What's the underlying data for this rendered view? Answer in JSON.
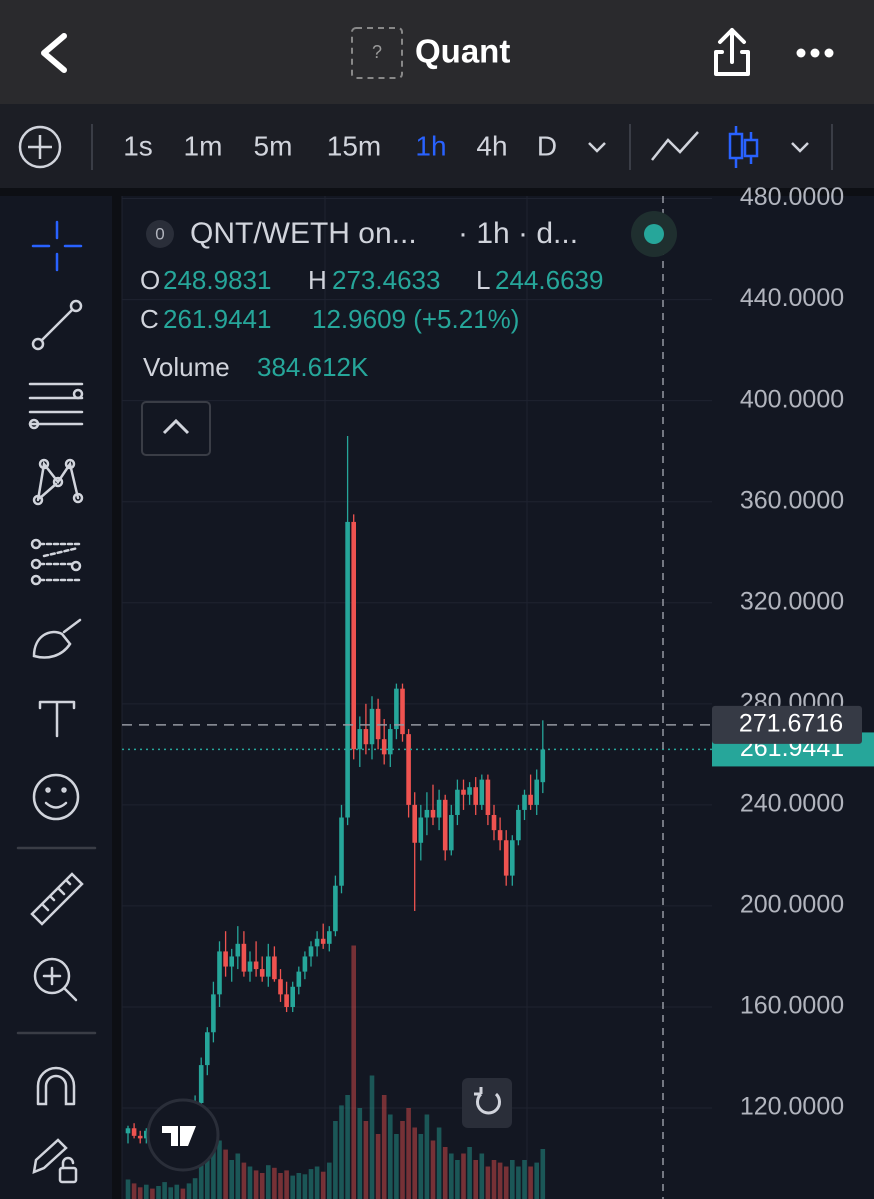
{
  "header": {
    "title": "Quant",
    "icon_label": "?"
  },
  "toolbar": {
    "intervals": [
      "1s",
      "1m",
      "5m",
      "15m",
      "1h",
      "4h",
      "D"
    ],
    "active_interval": "1h"
  },
  "chart_data": {
    "type": "candlestick",
    "legend_badge": "0",
    "symbol": "QNT/WETH on...",
    "interval": "· 1h · d...",
    "legend": {
      "open_label": "O",
      "open": "248.9831",
      "high_label": "H",
      "high": "273.4633",
      "low_label": "L",
      "low": "244.6639",
      "close_label": "C",
      "close": "261.9441",
      "change": "12.9609 (+5.21%)",
      "volume_label": "Volume",
      "volume": "384.612K"
    },
    "up_color": "#26a69a",
    "down_color": "#ef5350",
    "ylim": [
      84,
      481
    ],
    "yticks": [
      {
        "value": 120,
        "label": "120.0000"
      },
      {
        "value": 160,
        "label": "160.0000"
      },
      {
        "value": 200,
        "label": "200.0000"
      },
      {
        "value": 240,
        "label": "240.0000"
      },
      {
        "value": 280,
        "label": "280.0000"
      },
      {
        "value": 320,
        "label": "320.0000"
      },
      {
        "value": 360,
        "label": "360.0000"
      },
      {
        "value": 400,
        "label": "400.0000"
      },
      {
        "value": 440,
        "label": "440.0000"
      },
      {
        "value": 480,
        "label": "480.0000"
      }
    ],
    "crosshair_price": 271.6716,
    "last_price": 261.9441,
    "ohlc": [
      [
        110,
        113,
        106,
        112
      ],
      [
        112,
        114,
        108,
        109
      ],
      [
        109,
        111,
        106,
        108
      ],
      [
        108,
        112,
        106,
        111
      ],
      [
        111,
        113,
        107,
        108
      ],
      [
        108,
        112,
        105,
        110
      ],
      [
        110,
        114,
        108,
        112
      ],
      [
        112,
        116,
        109,
        114
      ],
      [
        114,
        118,
        111,
        116
      ],
      [
        116,
        119,
        112,
        113
      ],
      [
        113,
        120,
        110,
        118
      ],
      [
        118,
        125,
        115,
        122
      ],
      [
        122,
        140,
        120,
        137
      ],
      [
        137,
        152,
        133,
        150
      ],
      [
        150,
        170,
        146,
        165
      ],
      [
        165,
        186,
        160,
        182
      ],
      [
        182,
        190,
        172,
        176
      ],
      [
        176,
        183,
        170,
        180
      ],
      [
        180,
        192,
        175,
        185
      ],
      [
        185,
        190,
        172,
        174
      ],
      [
        174,
        182,
        170,
        178
      ],
      [
        178,
        186,
        172,
        175
      ],
      [
        175,
        180,
        170,
        172
      ],
      [
        172,
        185,
        168,
        180
      ],
      [
        180,
        184,
        170,
        171
      ],
      [
        171,
        175,
        162,
        165
      ],
      [
        165,
        170,
        158,
        160
      ],
      [
        160,
        170,
        158,
        168
      ],
      [
        168,
        176,
        165,
        174
      ],
      [
        174,
        182,
        171,
        180
      ],
      [
        180,
        186,
        176,
        184
      ],
      [
        184,
        190,
        180,
        187
      ],
      [
        187,
        193,
        183,
        185
      ],
      [
        185,
        192,
        182,
        190
      ],
      [
        190,
        212,
        188,
        208
      ],
      [
        208,
        240,
        205,
        235
      ],
      [
        235,
        386,
        232,
        352
      ],
      [
        352,
        355,
        258,
        262
      ],
      [
        262,
        275,
        255,
        270
      ],
      [
        270,
        280,
        260,
        264
      ],
      [
        264,
        283,
        258,
        278
      ],
      [
        278,
        282,
        262,
        266
      ],
      [
        266,
        274,
        256,
        260
      ],
      [
        260,
        272,
        255,
        270
      ],
      [
        270,
        288,
        266,
        286
      ],
      [
        286,
        288,
        265,
        268
      ],
      [
        268,
        270,
        235,
        240
      ],
      [
        240,
        245,
        198,
        225
      ],
      [
        225,
        240,
        218,
        235
      ],
      [
        235,
        245,
        228,
        238
      ],
      [
        238,
        248,
        232,
        235
      ],
      [
        235,
        246,
        230,
        242
      ],
      [
        242,
        244,
        218,
        222
      ],
      [
        222,
        240,
        220,
        236
      ],
      [
        236,
        250,
        232,
        246
      ],
      [
        246,
        250,
        238,
        244
      ],
      [
        244,
        249,
        240,
        247
      ],
      [
        247,
        251,
        236,
        240
      ],
      [
        240,
        252,
        238,
        250
      ],
      [
        250,
        252,
        232,
        236
      ],
      [
        236,
        240,
        226,
        230
      ],
      [
        230,
        235,
        222,
        226
      ],
      [
        226,
        230,
        208,
        212
      ],
      [
        212,
        228,
        208,
        226
      ],
      [
        226,
        240,
        224,
        238
      ],
      [
        238,
        246,
        234,
        244
      ],
      [
        244,
        252,
        238,
        240
      ],
      [
        240,
        254,
        236,
        250
      ],
      [
        248.9831,
        273.4633,
        244.6639,
        261.9441
      ]
    ],
    "volume": [
      150,
      120,
      90,
      110,
      80,
      100,
      130,
      90,
      110,
      80,
      120,
      160,
      300,
      350,
      400,
      450,
      380,
      300,
      350,
      280,
      250,
      220,
      200,
      260,
      240,
      200,
      220,
      180,
      200,
      190,
      230,
      250,
      210,
      280,
      600,
      720,
      800,
      1950,
      700,
      600,
      950,
      500,
      800,
      650,
      500,
      600,
      700,
      550,
      500,
      650,
      450,
      550,
      400,
      350,
      300,
      350,
      400,
      300,
      350,
      250,
      300,
      280,
      250,
      300,
      250,
      300,
      250,
      280,
      384.612
    ]
  }
}
